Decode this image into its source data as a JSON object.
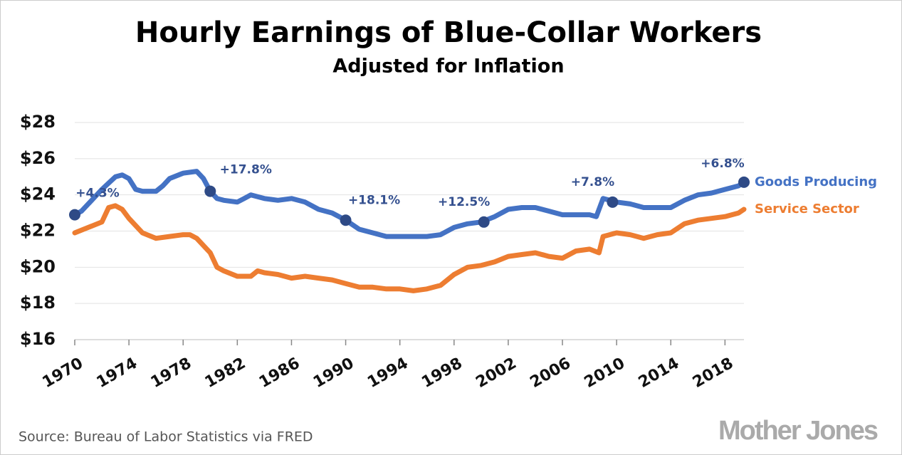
{
  "chart_data": {
    "type": "line",
    "title": "Hourly Earnings of Blue-Collar Workers",
    "subtitle": "Adjusted for Inflation",
    "source": "Source: Bureau of Labor Statistics via FRED",
    "logo": "Mother Jones",
    "xlim": [
      1970,
      2019.4
    ],
    "xticks": [
      1970,
      1974,
      1978,
      1982,
      1986,
      1990,
      1994,
      1998,
      2002,
      2006,
      2010,
      2014,
      2018
    ],
    "ylim": [
      16,
      28
    ],
    "yticks": [
      {
        "value": 16,
        "label": "$16"
      },
      {
        "value": 18,
        "label": "$18"
      },
      {
        "value": 20,
        "label": "$20"
      },
      {
        "value": 22,
        "label": "$22"
      },
      {
        "value": 24,
        "label": "$24"
      },
      {
        "value": 26,
        "label": "$26"
      },
      {
        "value": 28,
        "label": "$28"
      }
    ],
    "grid": true,
    "series": [
      {
        "name": "Goods Producing",
        "color": "#4472c4",
        "x": [
          1970,
          1970.5,
          1971,
          1972,
          1973,
          1973.5,
          1974,
          1974.5,
          1975,
          1976,
          1976.5,
          1977,
          1978,
          1979,
          1979.5,
          1980,
          1980.5,
          1981,
          1982,
          1982.5,
          1983,
          1984,
          1985,
          1986,
          1987,
          1988,
          1989,
          1990,
          1991,
          1992,
          1993,
          1994,
          1995,
          1996,
          1997,
          1998,
          1999,
          2000,
          2001,
          2002,
          2003,
          2004,
          2005,
          2006,
          2007,
          2008,
          2008.5,
          2009,
          2010,
          2011,
          2012,
          2013,
          2014,
          2015,
          2016,
          2017,
          2018,
          2019,
          2019.4
        ],
        "values": [
          22.9,
          23.1,
          23.5,
          24.3,
          25.0,
          25.1,
          24.9,
          24.3,
          24.2,
          24.2,
          24.5,
          24.9,
          25.2,
          25.3,
          24.9,
          24.2,
          23.8,
          23.7,
          23.6,
          23.8,
          24.0,
          23.8,
          23.7,
          23.8,
          23.6,
          23.2,
          23.0,
          22.6,
          22.1,
          21.9,
          21.7,
          21.7,
          21.7,
          21.7,
          21.8,
          22.2,
          22.4,
          22.5,
          22.8,
          23.2,
          23.3,
          23.3,
          23.1,
          22.9,
          22.9,
          22.9,
          22.8,
          23.8,
          23.6,
          23.5,
          23.3,
          23.3,
          23.3,
          23.7,
          24.0,
          24.1,
          24.3,
          24.5,
          24.7
        ]
      },
      {
        "name": "Service Sector",
        "color": "#ed7d31",
        "x": [
          1970,
          1971,
          1972,
          1972.5,
          1973,
          1973.5,
          1974,
          1975,
          1976,
          1977,
          1978,
          1978.5,
          1979,
          1980,
          1980.5,
          1981,
          1982,
          1983,
          1983.5,
          1984,
          1985,
          1986,
          1987,
          1988,
          1989,
          1990,
          1991,
          1992,
          1993,
          1994,
          1995,
          1996,
          1997,
          1998,
          1999,
          2000,
          2001,
          2002,
          2003,
          2004,
          2005,
          2006,
          2007,
          2008,
          2008.7,
          2009,
          2010,
          2011,
          2012,
          2013,
          2014,
          2015,
          2016,
          2017,
          2018,
          2019,
          2019.4
        ],
        "values": [
          21.9,
          22.2,
          22.5,
          23.3,
          23.4,
          23.2,
          22.7,
          21.9,
          21.6,
          21.7,
          21.8,
          21.8,
          21.6,
          20.8,
          20.0,
          19.8,
          19.5,
          19.5,
          19.8,
          19.7,
          19.6,
          19.4,
          19.5,
          19.4,
          19.3,
          19.1,
          18.9,
          18.9,
          18.8,
          18.8,
          18.7,
          18.8,
          19.0,
          19.6,
          20.0,
          20.1,
          20.3,
          20.6,
          20.7,
          20.8,
          20.6,
          20.5,
          20.9,
          21.0,
          20.8,
          21.7,
          21.9,
          21.8,
          21.6,
          21.8,
          21.9,
          22.4,
          22.6,
          22.7,
          22.8,
          23.0,
          23.2
        ]
      }
    ],
    "annotations": [
      {
        "x": 1970,
        "y": 22.9,
        "label": "+4.3%"
      },
      {
        "x": 1980,
        "y": 24.2,
        "label": "+17.8%"
      },
      {
        "x": 1990,
        "y": 22.6,
        "label": "+18.1%"
      },
      {
        "x": 2000.2,
        "y": 22.5,
        "label": "+12.5%"
      },
      {
        "x": 2009.7,
        "y": 23.6,
        "label": "+7.8%"
      },
      {
        "x": 2019.4,
        "y": 24.7,
        "label": "+6.8%"
      }
    ]
  }
}
